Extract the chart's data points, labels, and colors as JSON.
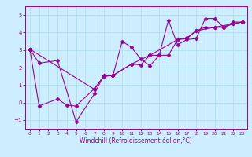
{
  "title": "",
  "xlabel": "Windchill (Refroidissement éolien,°C)",
  "ylabel": "",
  "bg_color": "#cceeff",
  "line_color": "#990099",
  "grid_color": "#aaddee",
  "xlim": [
    -0.5,
    23.5
  ],
  "ylim": [
    -1.5,
    5.5
  ],
  "yticks": [
    -1,
    0,
    1,
    2,
    3,
    4,
    5
  ],
  "xticks": [
    0,
    1,
    2,
    3,
    4,
    5,
    6,
    7,
    8,
    9,
    10,
    11,
    12,
    13,
    14,
    15,
    16,
    17,
    18,
    19,
    20,
    21,
    22,
    23
  ],
  "series1_x": [
    0,
    1,
    3,
    5,
    7,
    8,
    9,
    10,
    11,
    12,
    13,
    14,
    15,
    16,
    17,
    18,
    19,
    20,
    21,
    22,
    23
  ],
  "series1_y": [
    3.05,
    2.25,
    2.4,
    -1.1,
    0.5,
    1.55,
    1.55,
    3.5,
    3.15,
    2.5,
    2.1,
    2.7,
    4.7,
    3.3,
    3.6,
    3.65,
    4.8,
    4.8,
    4.3,
    4.6,
    4.6
  ],
  "series2_x": [
    0,
    1,
    3,
    4,
    5,
    7,
    8,
    9,
    11,
    12,
    13,
    16,
    17,
    18,
    20,
    22,
    23
  ],
  "series2_y": [
    3.05,
    -0.2,
    0.2,
    -0.15,
    -0.2,
    0.8,
    1.5,
    1.55,
    2.2,
    2.15,
    2.7,
    3.6,
    3.7,
    4.1,
    4.3,
    4.5,
    4.6
  ],
  "series3_x": [
    0,
    7,
    8,
    9,
    11,
    13,
    14,
    15,
    16,
    17,
    18,
    19,
    20,
    21,
    22,
    23
  ],
  "series3_y": [
    3.05,
    0.75,
    1.5,
    1.55,
    2.2,
    2.7,
    2.7,
    2.7,
    3.6,
    3.65,
    4.1,
    4.3,
    4.3,
    4.3,
    4.5,
    4.6
  ]
}
